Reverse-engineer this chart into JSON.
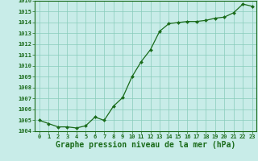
{
  "x": [
    0,
    1,
    2,
    3,
    4,
    5,
    6,
    7,
    8,
    9,
    10,
    11,
    12,
    13,
    14,
    15,
    16,
    17,
    18,
    19,
    20,
    21,
    22,
    23
  ],
  "y": [
    1005.0,
    1004.7,
    1004.4,
    1004.4,
    1004.3,
    1004.5,
    1005.3,
    1005.0,
    1006.3,
    1007.1,
    1009.0,
    1010.4,
    1011.5,
    1013.2,
    1013.9,
    1014.0,
    1014.1,
    1014.1,
    1014.2,
    1014.4,
    1014.5,
    1014.9,
    1015.7,
    1015.5
  ],
  "ylim": [
    1004,
    1016
  ],
  "xlim_min": -0.5,
  "xlim_max": 23.5,
  "yticks": [
    1004,
    1005,
    1006,
    1007,
    1008,
    1009,
    1010,
    1011,
    1012,
    1013,
    1014,
    1015,
    1016
  ],
  "xticks": [
    0,
    1,
    2,
    3,
    4,
    5,
    6,
    7,
    8,
    9,
    10,
    11,
    12,
    13,
    14,
    15,
    16,
    17,
    18,
    19,
    20,
    21,
    22,
    23
  ],
  "line_color": "#1a6b1a",
  "marker_color": "#1a6b1a",
  "bg_color": "#c8ece8",
  "grid_color": "#88ccbb",
  "xlabel": "Graphe pression niveau de la mer (hPa)",
  "xlabel_color": "#1a6b1a",
  "tick_color": "#1a6b1a",
  "tick_fontsize": 5.0,
  "xlabel_fontsize": 7.0,
  "spine_color": "#1a6b1a"
}
